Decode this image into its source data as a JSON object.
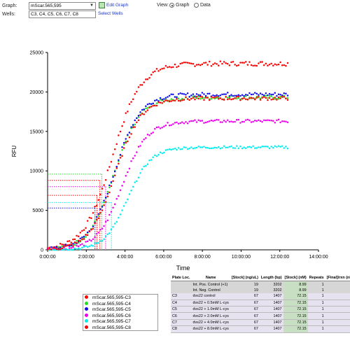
{
  "controls": {
    "graph_label": "Graph:",
    "graph_value": "mScar.565,595",
    "edit_graph": "Edit Graph",
    "wells_label": "Wells:",
    "wells_value": "C3, C4, C5, C6, C7, C8",
    "select_wells": "Select Wells",
    "view_label": "View:",
    "view_graph": "Graph",
    "view_data": "Data",
    "view_selected": "Graph"
  },
  "chart_data": {
    "type": "scatter",
    "xlabel": "Time",
    "ylabel": "RFU",
    "xlim": [
      0,
      14
    ],
    "ylim": [
      0,
      25000
    ],
    "x_ticks": [
      "0:00:00",
      "2:00:00",
      "4:00:00",
      "6:00:00",
      "8:00:00",
      "10:00:00",
      "12:00:00",
      "14:00:00"
    ],
    "y_ticks": [
      "0",
      "5000",
      "10000",
      "15000",
      "20000",
      "25000"
    ],
    "grid": false,
    "legend_placement": "bottom-left",
    "series": [
      {
        "name": "mScar.565,595-C3",
        "color": "#ff0000",
        "max": 23600,
        "t_half": 3.35,
        "k": 0.72
      },
      {
        "name": "mScar.565,595-C4",
        "color": "#22dd22",
        "max": 19300,
        "t_half": 3.45,
        "k": 0.66
      },
      {
        "name": "mScar.565,595-C5",
        "color": "#1010ee",
        "max": 19700,
        "t_half": 3.45,
        "k": 0.66
      },
      {
        "name": "mScar.565,595-C6",
        "color": "#ee00ee",
        "max": 16300,
        "t_half": 3.85,
        "k": 0.64
      },
      {
        "name": "mScar.565,595-C7",
        "color": "#00eeee",
        "max": 13000,
        "t_half": 4.15,
        "k": 0.6
      },
      {
        "name": "mScar.565,595-C8",
        "color": "#ff0000",
        "max": 19200,
        "t_half": 3.5,
        "k": 0.66
      }
    ],
    "halfmax_markers": [
      {
        "color": "#22dd22",
        "y": 9600,
        "x": 2.8
      },
      {
        "color": "#ff0000",
        "y": 8800,
        "x": 2.7
      },
      {
        "color": "#ee00ee",
        "y": 8000,
        "x": 3.0
      },
      {
        "color": "#ff0000",
        "y": 6900,
        "x": 2.55
      },
      {
        "color": "#00eeee",
        "y": 6000,
        "x": 3.3
      },
      {
        "color": "#1010ee",
        "y": 5300,
        "x": 2.45
      }
    ]
  },
  "table": {
    "headers": [
      "Plate Loc.",
      "Name",
      "[Stock] (ng/uL)",
      "Length (bp)",
      "[Stock] (nM)",
      "Repeats",
      "[Final]/rxn (nM)"
    ],
    "rows": [
      {
        "loc": "",
        "name": "Int. Pos. Control (+1)",
        "stock_ng": "19",
        "length": "3202",
        "stock_nm": "8.99",
        "repeats": "1",
        "final": "1",
        "shade": "g"
      },
      {
        "loc": "",
        "name": "Int. Neg. Control",
        "stock_ng": "19",
        "length": "3202",
        "stock_nm": "8.99",
        "repeats": "1",
        "final": "0",
        "shade": "g"
      },
      {
        "loc": "C3",
        "name": "dvs22 control",
        "stock_ng": "67",
        "length": "1407",
        "stock_nm": "72.15",
        "repeats": "1",
        "final": "5",
        "shade": "r"
      },
      {
        "loc": "C4",
        "name": "dvs22 + 0.5mM L-cys",
        "stock_ng": "67",
        "length": "1407",
        "stock_nm": "72.15",
        "repeats": "1",
        "final": "5",
        "shade": "r"
      },
      {
        "loc": "C5",
        "name": "dvs22 + 1.0mM L-cys",
        "stock_ng": "67",
        "length": "1407",
        "stock_nm": "72.15",
        "repeats": "1",
        "final": "5",
        "shade": "r"
      },
      {
        "loc": "C6",
        "name": "dvs22 + 2.0mM L-cys",
        "stock_ng": "67",
        "length": "1407",
        "stock_nm": "72.15",
        "repeats": "1",
        "final": "5",
        "shade": "r"
      },
      {
        "loc": "C7",
        "name": "dvs22 + 4.0mM L-cys",
        "stock_ng": "67",
        "length": "1407",
        "stock_nm": "72.15",
        "repeats": "1",
        "final": "5",
        "shade": "r"
      },
      {
        "loc": "C8",
        "name": "dvs22 + 8.0mM L-cys",
        "stock_ng": "67",
        "length": "1407",
        "stock_nm": "72.15",
        "repeats": "1",
        "final": "5",
        "shade": "r"
      }
    ]
  }
}
